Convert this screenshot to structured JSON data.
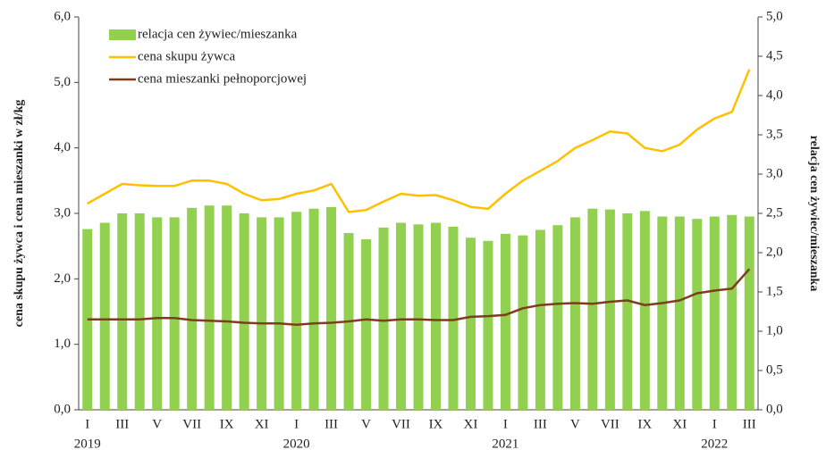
{
  "chart_data": {
    "type": "bar_line",
    "categories": [
      "I",
      null,
      "III",
      null,
      "V",
      null,
      "VII",
      null,
      "IX",
      null,
      "XI",
      null,
      "I",
      null,
      "III",
      null,
      "V",
      null,
      "VII",
      null,
      "IX",
      null,
      "XI",
      null,
      "I",
      null,
      "III",
      null,
      "V",
      null,
      "VII",
      null,
      "IX",
      null,
      "XI",
      null,
      "I",
      null,
      "III"
    ],
    "years": [
      "2019",
      null,
      null,
      null,
      null,
      null,
      null,
      null,
      null,
      null,
      null,
      null,
      "2020",
      null,
      null,
      null,
      null,
      null,
      null,
      null,
      null,
      null,
      null,
      null,
      "2021",
      null,
      null,
      null,
      null,
      null,
      null,
      null,
      null,
      null,
      null,
      null,
      "2022",
      null,
      null
    ],
    "series": [
      {
        "name": "relacja cen żywiec/mieszanka",
        "kind": "bar",
        "axis": "y2",
        "color": "#92d050",
        "values": [
          2.3,
          2.38,
          2.5,
          2.5,
          2.45,
          2.45,
          2.57,
          2.6,
          2.6,
          2.5,
          2.45,
          2.45,
          2.52,
          2.56,
          2.58,
          2.25,
          2.17,
          2.32,
          2.38,
          2.36,
          2.38,
          2.33,
          2.19,
          2.15,
          2.24,
          2.22,
          2.29,
          2.35,
          2.45,
          2.56,
          2.55,
          2.5,
          2.53,
          2.46,
          2.46,
          2.43,
          2.46,
          2.48,
          2.46
        ]
      },
      {
        "name": "cena skupu żywca",
        "kind": "line",
        "color": "#ffc000",
        "values": [
          3.15,
          3.3,
          3.45,
          3.43,
          3.42,
          3.42,
          3.5,
          3.5,
          3.45,
          3.3,
          3.2,
          3.22,
          3.3,
          3.35,
          3.45,
          3.02,
          3.05,
          3.18,
          3.3,
          3.27,
          3.28,
          3.2,
          3.1,
          3.07,
          3.3,
          3.5,
          3.65,
          3.8,
          4.0,
          4.12,
          4.25,
          4.22,
          4.0,
          3.95,
          4.05,
          4.28,
          4.45,
          4.55,
          5.2
        ]
      },
      {
        "name": "cena mieszanki pełnoporcjowej",
        "kind": "line",
        "color": "#7b3f1e",
        "values": [
          1.38,
          1.38,
          1.38,
          1.38,
          1.4,
          1.4,
          1.37,
          1.36,
          1.35,
          1.33,
          1.32,
          1.32,
          1.3,
          1.32,
          1.33,
          1.35,
          1.38,
          1.36,
          1.38,
          1.38,
          1.37,
          1.37,
          1.42,
          1.43,
          1.45,
          1.55,
          1.6,
          1.62,
          1.63,
          1.62,
          1.65,
          1.67,
          1.6,
          1.63,
          1.67,
          1.78,
          1.82,
          1.85,
          2.15
        ]
      }
    ],
    "ylabel": "cena skupu żywca i cena mieszanki w zł/kg",
    "y2label": "relacja cen żywiec/mieszanka",
    "ylim": [
      0,
      6
    ],
    "yticks": [
      {
        "value": 0,
        "label": "0,0"
      },
      {
        "value": 1,
        "label": "1,0"
      },
      {
        "value": 2,
        "label": "2,0"
      },
      {
        "value": 3,
        "label": "3,0"
      },
      {
        "value": 4,
        "label": "4,0"
      },
      {
        "value": 5,
        "label": "5,0"
      },
      {
        "value": 6,
        "label": "6,0"
      }
    ],
    "y2lim": [
      0,
      5
    ],
    "y2ticks": [
      {
        "value": 0,
        "label": "0,0"
      },
      {
        "value": 0.5,
        "label": "0,5"
      },
      {
        "value": 1,
        "label": "1,0"
      },
      {
        "value": 1.5,
        "label": "1,5"
      },
      {
        "value": 2,
        "label": "2,0"
      },
      {
        "value": 2.5,
        "label": "2,5"
      },
      {
        "value": 3,
        "label": "3,0"
      },
      {
        "value": 3.5,
        "label": "3,5"
      },
      {
        "value": 4,
        "label": "4,0"
      },
      {
        "value": 4.5,
        "label": "4,5"
      },
      {
        "value": 5,
        "label": "5,0"
      }
    ],
    "legend": "upper left"
  }
}
